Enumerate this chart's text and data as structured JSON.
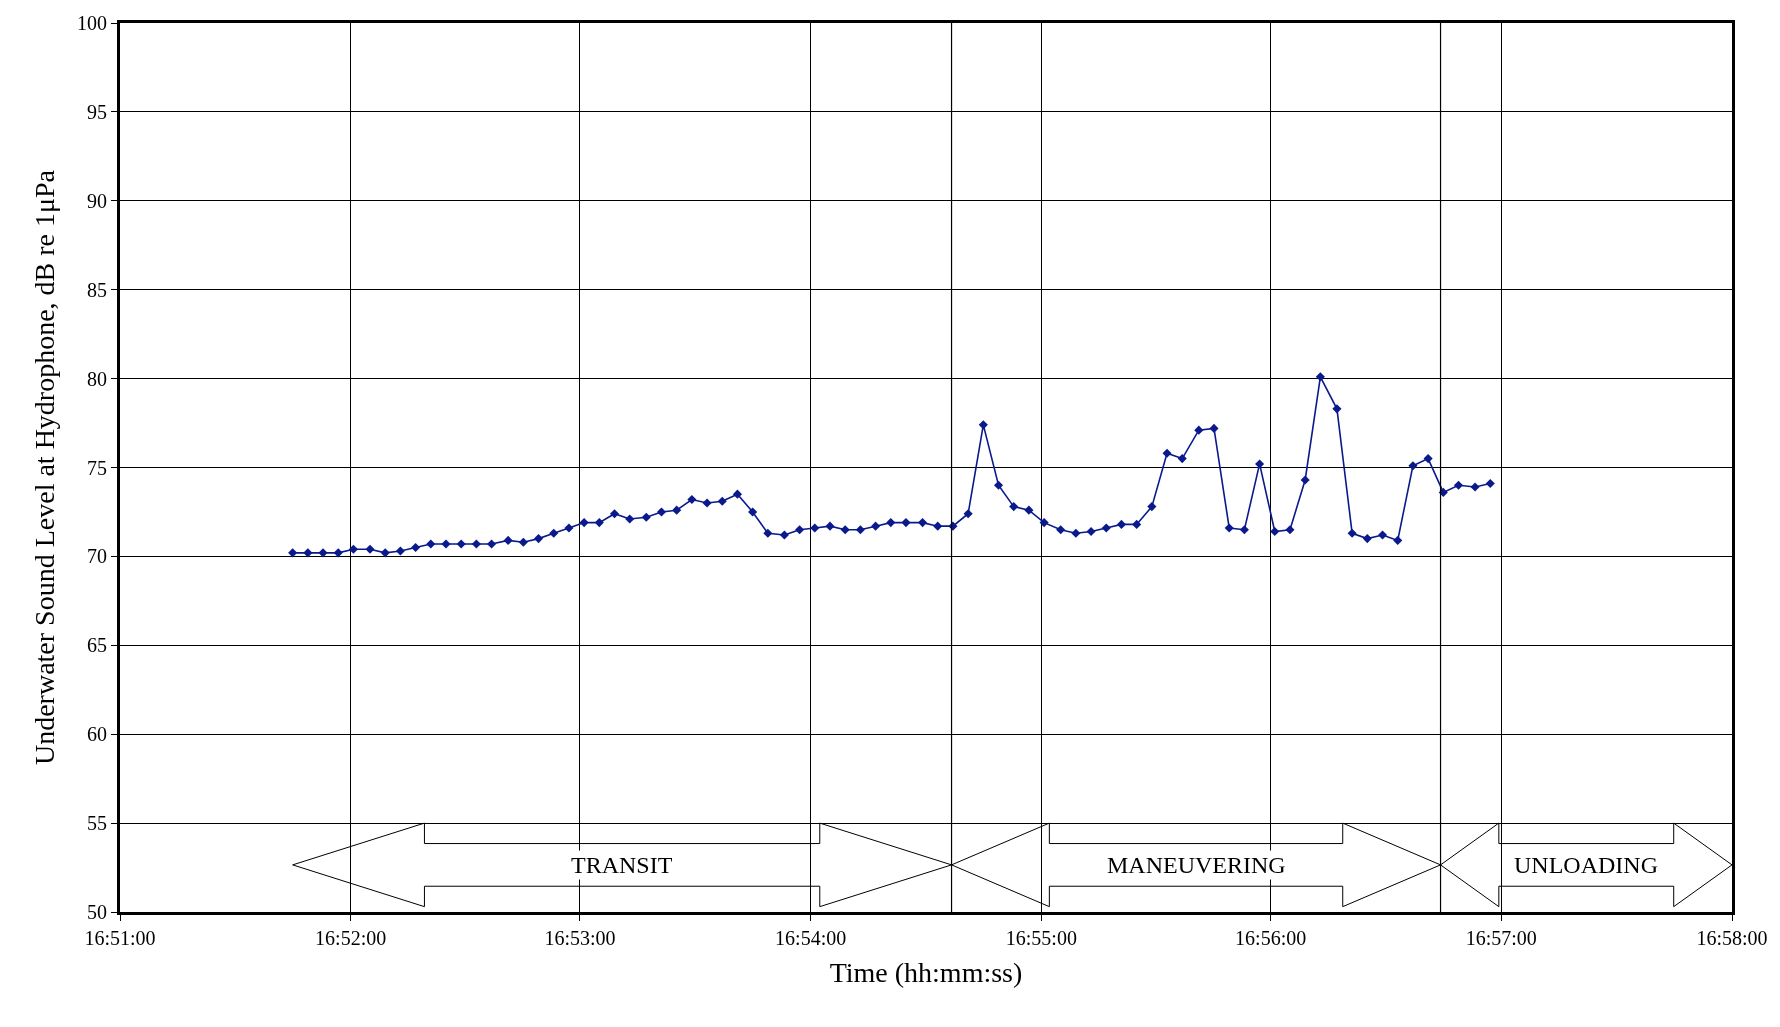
{
  "chart_data": {
    "type": "line",
    "xlabel": "Time (hh:mm:ss)",
    "ylabel": "Underwater Sound Level at Hydrophone, dB re 1μPa",
    "x": [
      16.8625,
      16.8636,
      16.8647,
      16.8658,
      16.8669,
      16.8681,
      16.8692,
      16.8703,
      16.8714,
      16.8725,
      16.8736,
      16.8747,
      16.8758,
      16.8769,
      16.8781,
      16.8792,
      16.8803,
      16.8814,
      16.8825,
      16.8836,
      16.8847,
      16.8858,
      16.8869,
      16.8881,
      16.8892,
      16.8903,
      16.8914,
      16.8925,
      16.8936,
      16.8947,
      16.8958,
      16.8969,
      16.8981,
      16.8992,
      16.9003,
      16.9014,
      16.9025,
      16.9036,
      16.9047,
      16.9058,
      16.9069,
      16.9081,
      16.9092,
      16.9103,
      16.9114,
      16.9125,
      16.9136,
      16.9147,
      16.9158,
      16.9169,
      16.9181,
      16.9192,
      16.9203,
      16.9214,
      16.9225,
      16.9236,
      16.9247,
      16.9258,
      16.9269,
      16.9281,
      16.9292,
      16.9303,
      16.9314,
      16.9325,
      16.9336,
      16.9347,
      16.9358,
      16.9369,
      16.9381,
      16.9392,
      16.9403,
      16.9414,
      16.9425,
      16.9436,
      16.9447,
      16.9458,
      16.9469,
      16.9481,
      16.9492
    ],
    "series": [
      {
        "color": "#0a1a8c",
        "values": [
          70.2,
          70.2,
          70.2,
          70.2,
          70.4,
          70.4,
          70.2,
          70.3,
          70.5,
          70.7,
          70.7,
          70.7,
          70.7,
          70.7,
          70.9,
          70.8,
          71.0,
          71.3,
          71.6,
          71.9,
          71.9,
          72.4,
          72.1,
          72.2,
          72.5,
          72.6,
          73.2,
          73.0,
          73.1,
          73.5,
          72.5,
          71.3,
          71.2,
          71.5,
          71.6,
          71.7,
          71.5,
          71.5,
          71.7,
          71.9,
          71.9,
          71.9,
          71.7,
          71.7,
          72.4,
          77.4,
          74.0,
          72.8,
          72.6,
          71.9,
          71.5,
          71.3,
          71.4,
          71.6,
          71.8,
          71.8,
          72.8,
          75.8,
          75.5,
          77.1,
          77.2,
          71.6,
          71.5,
          75.2,
          71.4,
          71.5,
          74.3,
          80.1,
          78.3,
          71.3,
          71.0,
          71.2,
          70.9,
          75.1,
          75.5,
          73.6,
          74.0,
          73.9,
          74.1
        ]
      }
    ],
    "xlim": [
      16.85,
      16.9667
    ],
    "xticks": [
      {
        "value": 16.85,
        "label": "16:51:00"
      },
      {
        "value": 16.8667,
        "label": "16:52:00"
      },
      {
        "value": 16.8833,
        "label": "16:53:00"
      },
      {
        "value": 16.9,
        "label": "16:54:00"
      },
      {
        "value": 16.9167,
        "label": "16:55:00"
      },
      {
        "value": 16.9333,
        "label": "16:56:00"
      },
      {
        "value": 16.95,
        "label": "16:57:00"
      },
      {
        "value": 16.9667,
        "label": "16:58:00"
      }
    ],
    "ylim": [
      50,
      100
    ],
    "yticks": [
      50,
      55,
      60,
      65,
      70,
      75,
      80,
      85,
      90,
      95,
      100
    ],
    "ref_lines": [
      {
        "axis": "x",
        "value": 16.9102,
        "color": "#000000"
      },
      {
        "axis": "x",
        "value": 16.9456,
        "color": "#000000"
      }
    ],
    "annotations": [
      "TRANSIT",
      "MANEUVERING",
      "UNLOADING"
    ],
    "grid": true,
    "marker": "diamond",
    "line_style": "solid"
  }
}
